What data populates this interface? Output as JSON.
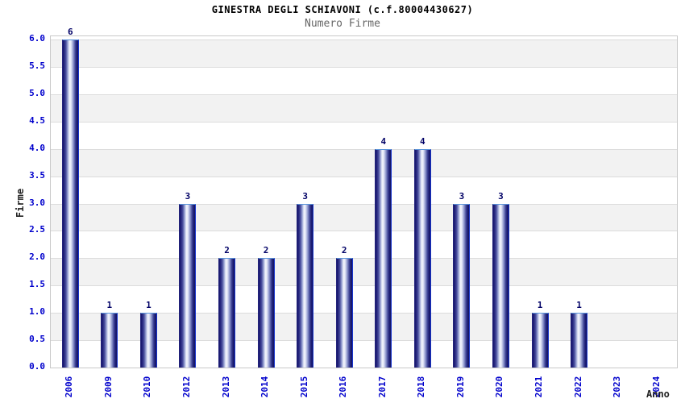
{
  "chart_data": {
    "type": "bar",
    "title": "GINESTRA DEGLI SCHIAVONI (c.f.80004430627)",
    "subtitle": "Numero Firme",
    "xlabel": "Anno",
    "ylabel": "Firme",
    "categories": [
      "2006",
      "2009",
      "2010",
      "2012",
      "2013",
      "2014",
      "2015",
      "2016",
      "2017",
      "2018",
      "2019",
      "2020",
      "2021",
      "2022",
      "2023",
      "2024"
    ],
    "values": [
      6,
      1,
      1,
      3,
      2,
      2,
      3,
      2,
      4,
      4,
      3,
      3,
      1,
      1,
      0,
      0
    ],
    "ylim": [
      0,
      6
    ],
    "ytick_step": 0.5,
    "ytick_format_decimals": 1,
    "grid": true,
    "legend_position": "none",
    "background_bands": "alternating gray/white per 0.5 unit",
    "colors": {
      "tick_label": "#0000cc",
      "value_label": "#000066",
      "axis_title": "#222222",
      "title_color": "#000000",
      "subtitle_color": "#666666",
      "bar_dark": "#16166b",
      "bar_light": "#f3f5fc",
      "bar_border": "#2e59c7",
      "band_gray": "#f2f2f2",
      "band_white": "#ffffff",
      "grid_line": "#dcdcdc",
      "plot_border": "#c9c9c9"
    }
  }
}
